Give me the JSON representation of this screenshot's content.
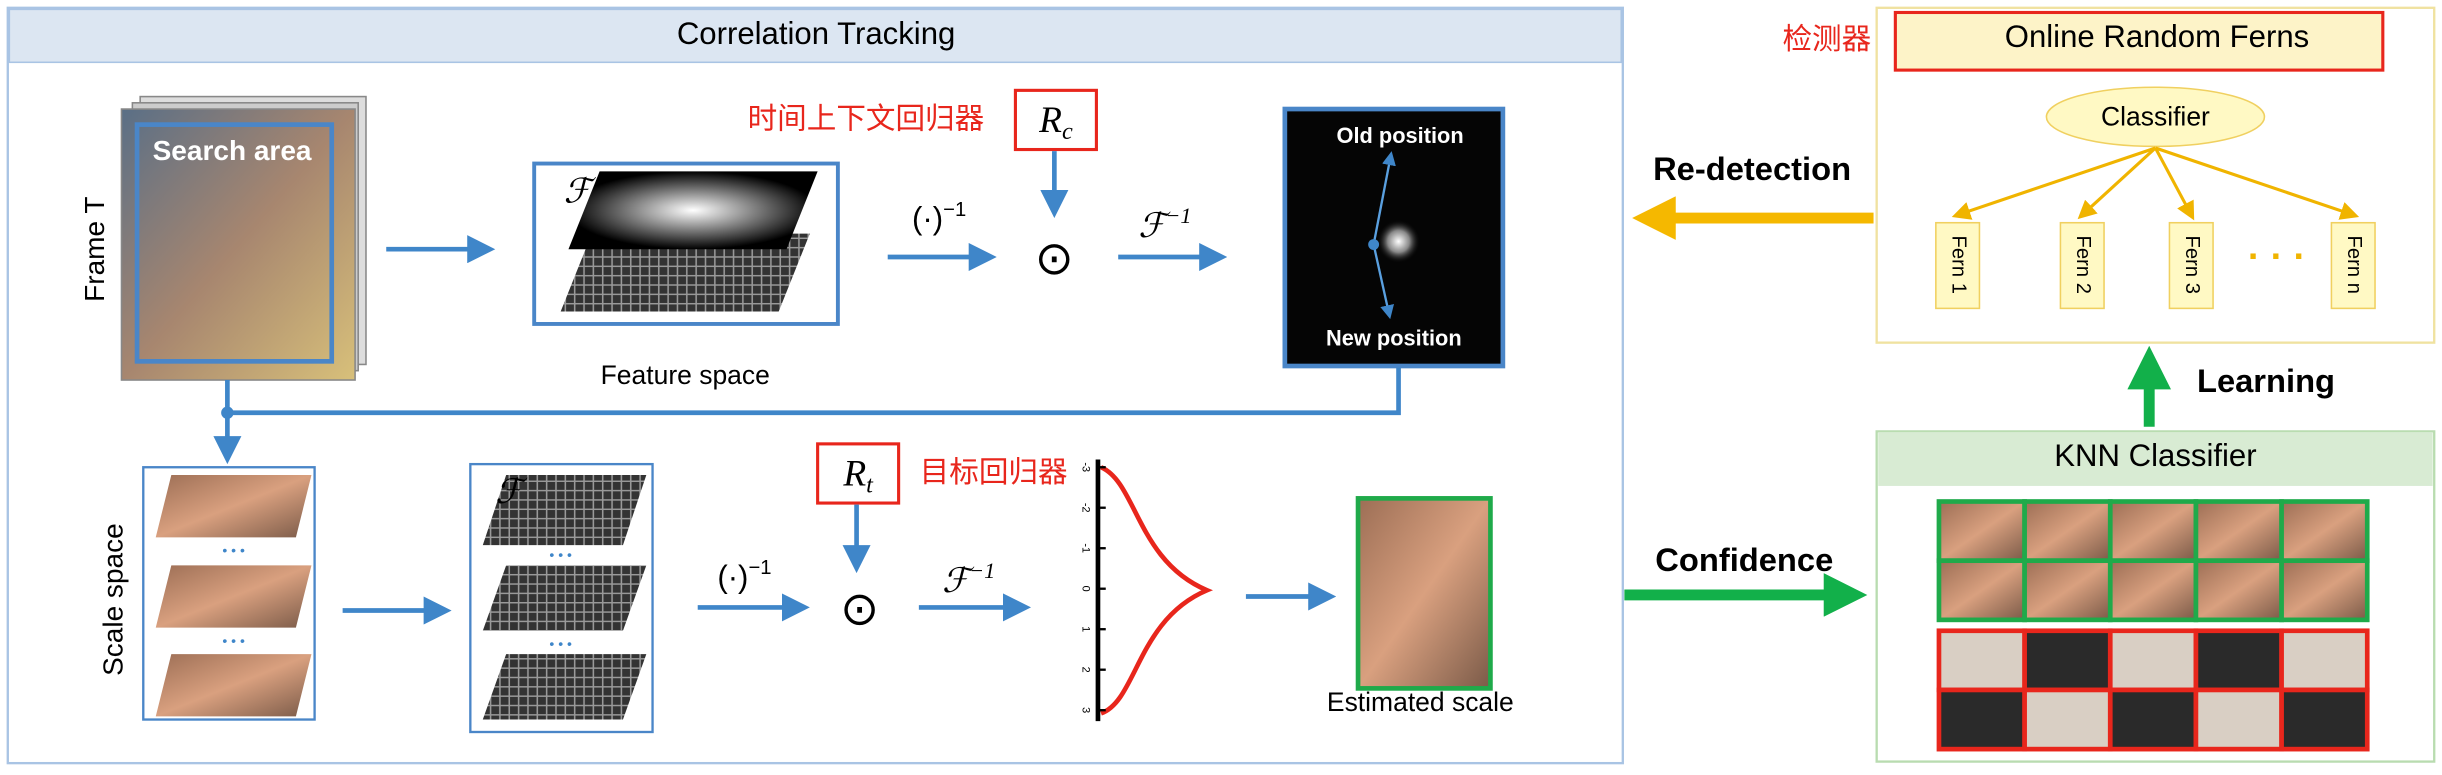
{
  "panels": {
    "correlation_title": "Correlation Tracking",
    "ferns_title": "Online Random Ferns",
    "knn_title": "KNN Classifier",
    "detector_label": "检测器"
  },
  "tracking": {
    "search_area": "Search area",
    "frame_label": "Frame T",
    "feature_space": "Feature space",
    "fourier": "ℱ",
    "inverse": {
      "base": "(·)",
      "sup": "−1"
    },
    "hadamard": "⊙",
    "inverse_fourier": {
      "base": "ℱ",
      "sup": "−1"
    },
    "context_regressor": "时间上下文回归器",
    "rc": {
      "base": "R",
      "sub": "c"
    },
    "old_position": "Old position",
    "new_position": "New position"
  },
  "scale": {
    "scale_space": "Scale space",
    "dots": "• • •",
    "target_regressor": "目标回归器",
    "rt": {
      "base": "R",
      "sub": "t"
    },
    "gaussian_ticks": [
      -3,
      -2,
      -1,
      0,
      1,
      2,
      3
    ],
    "estimated_scale": "Estimated scale"
  },
  "ferns": {
    "classifier": "Classifier",
    "nodes": [
      "Fern 1",
      "Fern 2",
      "Fern 3",
      "Fern n"
    ],
    "ellipsis": "· · ·"
  },
  "flows": {
    "redetection": "Re-detection",
    "confidence": "Confidence",
    "learning": "Learning"
  }
}
